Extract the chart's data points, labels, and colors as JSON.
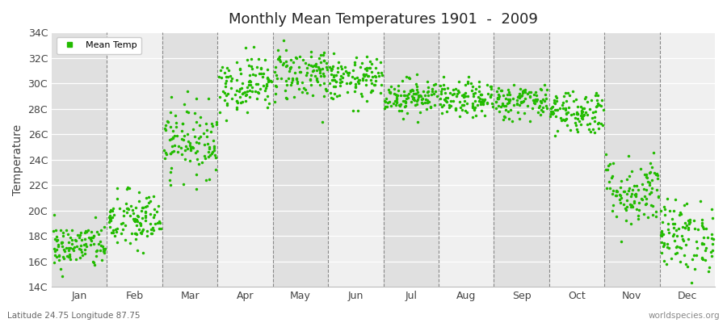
{
  "title": "Monthly Mean Temperatures 1901  -  2009",
  "ylabel": "Temperature",
  "xlabel_bottom_left": "Latitude 24.75 Longitude 87.75",
  "xlabel_bottom_right": "worldspecies.org",
  "legend_label": "Mean Temp",
  "dot_color": "#22bb00",
  "band_color_light": "#f0f0f0",
  "band_color_dark": "#e0e0e0",
  "fig_bg_color": "#ffffff",
  "ylim": [
    14,
    34
  ],
  "ytick_labels": [
    "14C",
    "16C",
    "18C",
    "20C",
    "22C",
    "24C",
    "26C",
    "28C",
    "30C",
    "32C",
    "34C"
  ],
  "ytick_values": [
    14,
    16,
    18,
    20,
    22,
    24,
    26,
    28,
    30,
    32,
    34
  ],
  "months": [
    "Jan",
    "Feb",
    "Mar",
    "Apr",
    "May",
    "Jun",
    "Jul",
    "Aug",
    "Sep",
    "Oct",
    "Nov",
    "Dec"
  ],
  "month_positions": [
    0.5,
    1.5,
    2.5,
    3.5,
    4.5,
    5.5,
    6.5,
    7.5,
    8.5,
    9.5,
    10.5,
    11.5
  ],
  "month_dividers": [
    1,
    2,
    3,
    4,
    5,
    6,
    7,
    8,
    9,
    10,
    11
  ],
  "num_years": 109,
  "monthly_means": [
    17.2,
    19.2,
    25.5,
    30.0,
    30.8,
    30.3,
    29.0,
    28.7,
    28.6,
    27.8,
    21.5,
    18.0
  ],
  "monthly_stds": [
    0.9,
    1.2,
    1.4,
    1.1,
    1.1,
    0.85,
    0.7,
    0.7,
    0.7,
    0.9,
    1.4,
    1.4
  ],
  "marker_size": 2.5,
  "dpi": 100,
  "figsize": [
    9.0,
    4.0
  ]
}
